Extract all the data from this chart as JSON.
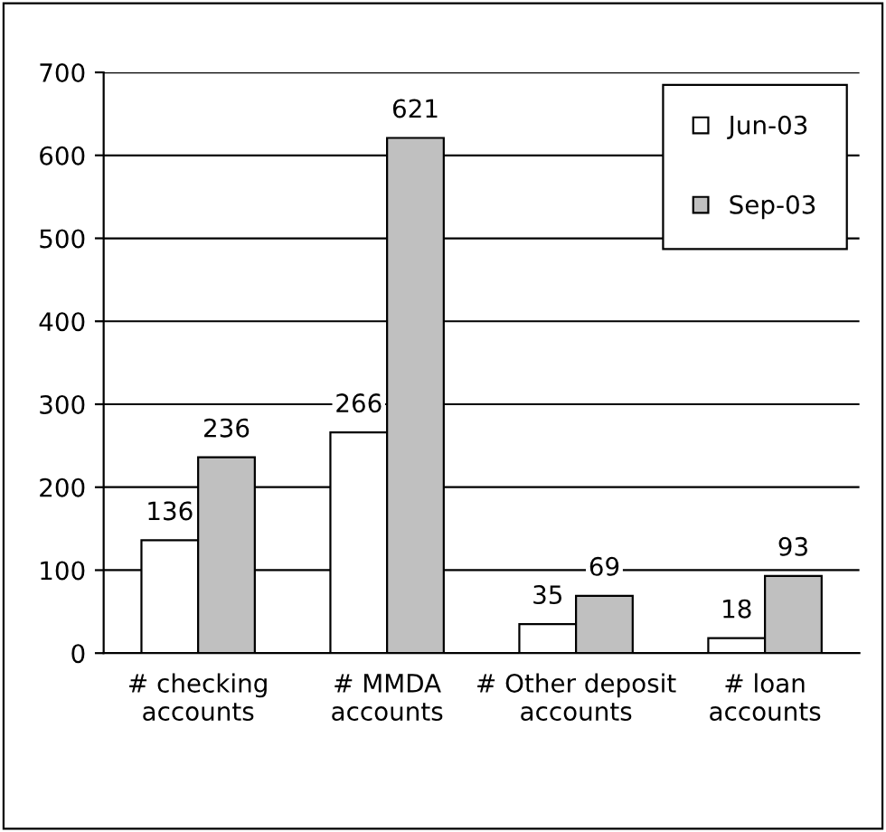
{
  "chart_data": {
    "type": "bar",
    "categories": [
      "# checking\naccounts",
      "# MMDA\naccounts",
      "# Other deposit\naccounts",
      "# loan\naccounts"
    ],
    "series": [
      {
        "name": "Jun-03",
        "color": "#ffffff",
        "values": [
          136,
          266,
          35,
          18
        ]
      },
      {
        "name": "Sep-03",
        "color": "#c0c0c0",
        "values": [
          236,
          621,
          69,
          93
        ]
      }
    ],
    "ylim": [
      0,
      700
    ],
    "yticks": [
      0,
      100,
      200,
      300,
      400,
      500,
      600,
      700
    ],
    "grid": "y",
    "legend": "top right",
    "data_labels": true
  }
}
